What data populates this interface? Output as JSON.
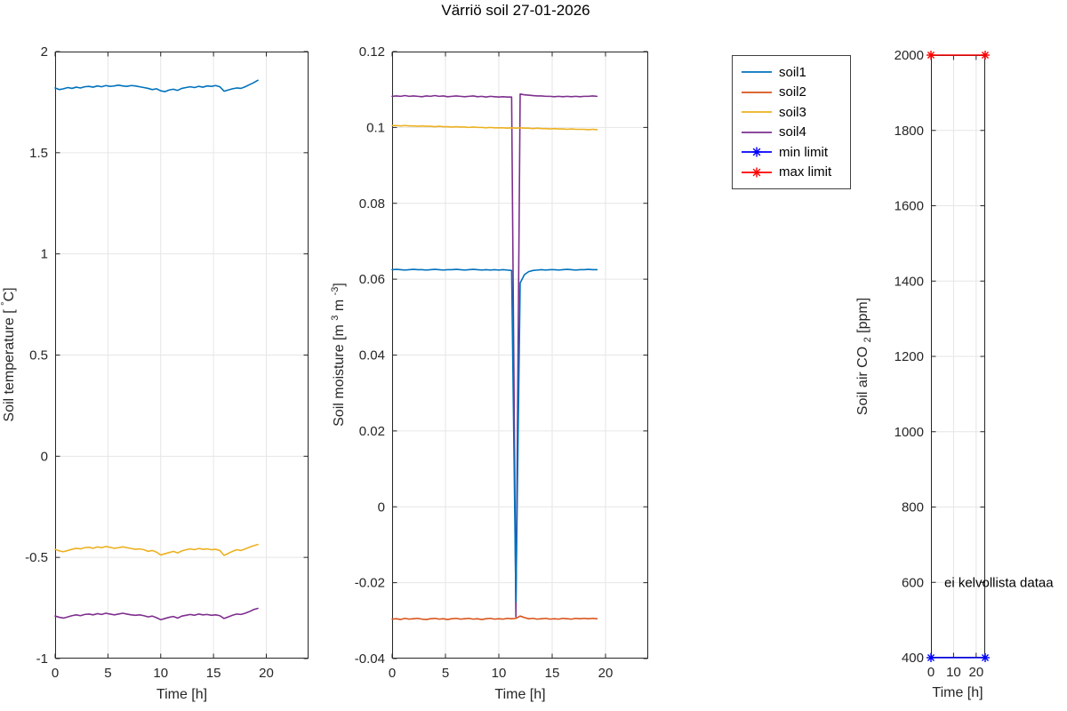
{
  "title": "Värriö soil 27-01-2026",
  "colors": {
    "soil1": "#0072BD",
    "soil2": "#D95319",
    "soil3": "#EDB120",
    "soil4": "#7E2F8E",
    "min_limit": "#0000FF",
    "max_limit": "#FF0000",
    "grid": "#E6E6E6",
    "axis": "#262626"
  },
  "legend": {
    "items": [
      {
        "label": "soil1",
        "color": "#0072BD",
        "marker": null
      },
      {
        "label": "soil2",
        "color": "#D95319",
        "marker": null
      },
      {
        "label": "soil3",
        "color": "#EDB120",
        "marker": null
      },
      {
        "label": "soil4",
        "color": "#7E2F8E",
        "marker": null
      },
      {
        "label": "min limit",
        "color": "#0000FF",
        "marker": "asterisk"
      },
      {
        "label": "max limit",
        "color": "#FF0000",
        "marker": "asterisk"
      }
    ]
  },
  "chart_data": [
    {
      "id": "temp",
      "type": "line",
      "xlabel": "Time [h]",
      "ylabel": "Soil temperature [°C]",
      "ylabel_parts": [
        {
          "t": "Soil temperature [ "
        },
        {
          "t": "°",
          "sup": true
        },
        {
          "t": "C]"
        }
      ],
      "xlim": [
        0,
        24
      ],
      "ylim": [
        -1,
        2
      ],
      "grid": true,
      "xticks": {
        "values": [
          0,
          5,
          10,
          15,
          20
        ],
        "labels": [
          "0",
          "5",
          "10",
          "15",
          "20"
        ]
      },
      "yticks": {
        "values": [
          -1,
          -0.5,
          0,
          0.5,
          1,
          1.5,
          2
        ],
        "labels": [
          "-1",
          "-0.5",
          "0",
          "0.5",
          "1",
          "1.5",
          "2"
        ]
      },
      "x": [
        0,
        0.4,
        0.8,
        1.2,
        1.6,
        2,
        2.4,
        2.8,
        3.2,
        3.6,
        4,
        4.4,
        4.8,
        5.2,
        5.6,
        6,
        6.4,
        6.8,
        7.2,
        7.6,
        8,
        8.4,
        8.8,
        9.2,
        9.6,
        10,
        10.4,
        10.8,
        11.2,
        11.6,
        12,
        12.4,
        12.8,
        13.2,
        13.6,
        14,
        14.4,
        14.8,
        15.2,
        15.6,
        16,
        16.4,
        16.8,
        17.2,
        17.6,
        18,
        18.4,
        18.8,
        19.2
      ],
      "series": [
        {
          "name": "soil1",
          "color": "#0072BD",
          "values": [
            1.82,
            1.812,
            1.816,
            1.822,
            1.818,
            1.824,
            1.82,
            1.826,
            1.828,
            1.824,
            1.83,
            1.826,
            1.832,
            1.828,
            1.83,
            1.834,
            1.83,
            1.828,
            1.832,
            1.83,
            1.826,
            1.822,
            1.818,
            1.812,
            1.816,
            1.806,
            1.802,
            1.81,
            1.814,
            1.808,
            1.818,
            1.822,
            1.826,
            1.822,
            1.828,
            1.824,
            1.83,
            1.828,
            1.832,
            1.826,
            1.804,
            1.81,
            1.816,
            1.82,
            1.818,
            1.826,
            1.836,
            1.846,
            1.858
          ]
        },
        {
          "name": "soil3",
          "color": "#EDB120",
          "values": [
            -0.46,
            -0.468,
            -0.472,
            -0.466,
            -0.46,
            -0.455,
            -0.458,
            -0.452,
            -0.45,
            -0.455,
            -0.448,
            -0.452,
            -0.446,
            -0.45,
            -0.455,
            -0.452,
            -0.448,
            -0.452,
            -0.456,
            -0.46,
            -0.458,
            -0.462,
            -0.47,
            -0.466,
            -0.474,
            -0.488,
            -0.482,
            -0.476,
            -0.47,
            -0.478,
            -0.468,
            -0.462,
            -0.458,
            -0.462,
            -0.456,
            -0.46,
            -0.458,
            -0.462,
            -0.46,
            -0.466,
            -0.49,
            -0.48,
            -0.47,
            -0.462,
            -0.466,
            -0.458,
            -0.45,
            -0.442,
            -0.436
          ]
        },
        {
          "name": "soil4",
          "color": "#7E2F8E",
          "values": [
            -0.79,
            -0.796,
            -0.8,
            -0.794,
            -0.788,
            -0.784,
            -0.788,
            -0.782,
            -0.78,
            -0.784,
            -0.778,
            -0.782,
            -0.776,
            -0.78,
            -0.784,
            -0.78,
            -0.776,
            -0.78,
            -0.784,
            -0.786,
            -0.784,
            -0.788,
            -0.794,
            -0.79,
            -0.798,
            -0.808,
            -0.802,
            -0.796,
            -0.792,
            -0.8,
            -0.79,
            -0.786,
            -0.782,
            -0.786,
            -0.78,
            -0.784,
            -0.782,
            -0.786,
            -0.784,
            -0.788,
            -0.802,
            -0.794,
            -0.786,
            -0.78,
            -0.782,
            -0.776,
            -0.768,
            -0.758,
            -0.752
          ]
        }
      ]
    },
    {
      "id": "moisture",
      "type": "line",
      "xlabel": "Time [h]",
      "ylabel": "Soil moisture [m3 m-3]",
      "ylabel_parts": [
        {
          "t": "Soil moisture [m "
        },
        {
          "t": "3",
          "sup": true
        },
        {
          "t": " m "
        },
        {
          "t": "-3",
          "sup": true
        },
        {
          "t": "]"
        }
      ],
      "xlim": [
        0,
        24
      ],
      "ylim": [
        -0.04,
        0.12
      ],
      "grid": true,
      "xticks": {
        "values": [
          0,
          5,
          10,
          15,
          20
        ],
        "labels": [
          "0",
          "5",
          "10",
          "15",
          "20"
        ]
      },
      "yticks": {
        "values": [
          -0.04,
          -0.02,
          0,
          0.02,
          0.04,
          0.06,
          0.08,
          0.1,
          0.12
        ],
        "labels": [
          "-0.04",
          "-0.02",
          "0",
          "0.02",
          "0.04",
          "0.06",
          "0.08",
          "0.1",
          "0.12"
        ]
      },
      "x": [
        0,
        0.4,
        0.8,
        1.2,
        1.6,
        2,
        2.4,
        2.8,
        3.2,
        3.6,
        4,
        4.4,
        4.8,
        5.2,
        5.6,
        6,
        6.4,
        6.8,
        7.2,
        7.6,
        8,
        8.4,
        8.8,
        9.2,
        9.6,
        10,
        10.4,
        10.8,
        11.2,
        11.6,
        12,
        12.4,
        12.8,
        13.2,
        13.6,
        14,
        14.4,
        14.8,
        15.2,
        15.6,
        16,
        16.4,
        16.8,
        17.2,
        17.6,
        18,
        18.4,
        18.8,
        19.2
      ],
      "series": [
        {
          "name": "soil4",
          "color": "#7E2F8E",
          "values": [
            0.1082,
            0.1083,
            0.1082,
            0.1084,
            0.1082,
            0.1083,
            0.1082,
            0.1081,
            0.1083,
            0.1082,
            0.1084,
            0.1082,
            0.1083,
            0.1081,
            0.1082,
            0.1083,
            0.1082,
            0.1081,
            0.1082,
            0.1083,
            0.1081,
            0.1082,
            0.108,
            0.1082,
            0.1081,
            0.108,
            0.1081,
            0.108,
            0.108,
            -0.029,
            0.1088,
            0.1086,
            0.1085,
            0.1084,
            0.1083,
            0.1083,
            0.1082,
            0.1082,
            0.1081,
            0.1082,
            0.1081,
            0.1082,
            0.1081,
            0.1082,
            0.1081,
            0.1082,
            0.1082,
            0.1083,
            0.1082
          ]
        },
        {
          "name": "soil3",
          "color": "#EDB120",
          "values": [
            0.1005,
            0.1005,
            0.1004,
            0.1005,
            0.1004,
            0.1004,
            0.1003,
            0.1004,
            0.1003,
            0.1003,
            0.1002,
            0.1003,
            0.1002,
            0.1002,
            0.1001,
            0.1002,
            0.1001,
            0.1001,
            0.1,
            0.1001,
            0.1,
            0.1,
            0.0999,
            0.1,
            0.0999,
            0.0999,
            0.0999,
            0.0998,
            0.0999,
            0.0998,
            0.0999,
            0.0998,
            0.0998,
            0.0997,
            0.0998,
            0.0997,
            0.0997,
            0.0996,
            0.0997,
            0.0996,
            0.0996,
            0.0995,
            0.0996,
            0.0995,
            0.0995,
            0.0995,
            0.0994,
            0.0995,
            0.0994
          ]
        },
        {
          "name": "soil1",
          "color": "#0072BD",
          "values": [
            0.0625,
            0.0626,
            0.0625,
            0.0624,
            0.0625,
            0.0626,
            0.0625,
            0.0625,
            0.0624,
            0.0625,
            0.0626,
            0.0625,
            0.0624,
            0.0625,
            0.0625,
            0.0626,
            0.0625,
            0.0624,
            0.0625,
            0.0626,
            0.0625,
            0.0624,
            0.0625,
            0.0624,
            0.0625,
            0.0624,
            0.0625,
            0.0624,
            0.0623,
            -0.025,
            0.059,
            0.0612,
            0.062,
            0.0623,
            0.0624,
            0.0625,
            0.0624,
            0.0625,
            0.0625,
            0.0624,
            0.0625,
            0.0626,
            0.0625,
            0.0624,
            0.0625,
            0.0625,
            0.0626,
            0.0625,
            0.0625
          ]
        },
        {
          "name": "soil2",
          "color": "#D95319",
          "values": [
            -0.0296,
            -0.0295,
            -0.0297,
            -0.0294,
            -0.0296,
            -0.0295,
            -0.0294,
            -0.0296,
            -0.0297,
            -0.0295,
            -0.0294,
            -0.0296,
            -0.0295,
            -0.0297,
            -0.0295,
            -0.0294,
            -0.0296,
            -0.0295,
            -0.0294,
            -0.0296,
            -0.0295,
            -0.0297,
            -0.0295,
            -0.0294,
            -0.0296,
            -0.0295,
            -0.0296,
            -0.0294,
            -0.0295,
            -0.0294,
            -0.0288,
            -0.0292,
            -0.0295,
            -0.0294,
            -0.0296,
            -0.0295,
            -0.0294,
            -0.0296,
            -0.0295,
            -0.0296,
            -0.0294,
            -0.0295,
            -0.0296,
            -0.0294,
            -0.0295,
            -0.0294,
            -0.0295,
            -0.0294,
            -0.0295
          ]
        }
      ]
    },
    {
      "id": "co2",
      "type": "line",
      "xlabel": "Time [h]",
      "ylabel": "Soil air CO2 [ppm]",
      "ylabel_parts": [
        {
          "t": "Soil air CO "
        },
        {
          "t": "2",
          "sub": true
        },
        {
          "t": " [ppm]"
        }
      ],
      "xlim": [
        0,
        24
      ],
      "ylim": [
        400,
        2000
      ],
      "grid": true,
      "xticks": {
        "values": [
          0,
          10,
          20
        ],
        "labels": [
          "0",
          "10",
          "20"
        ]
      },
      "yticks": {
        "values": [
          400,
          600,
          800,
          1000,
          1200,
          1400,
          1600,
          1800,
          2000
        ],
        "labels": [
          "400",
          "600",
          "800",
          "1000",
          "1200",
          "1400",
          "1600",
          "1800",
          "2000"
        ]
      },
      "series": [
        {
          "name": "max limit",
          "color": "#FF0000",
          "marker": "asterisk",
          "x": [
            0,
            24
          ],
          "values": [
            2000,
            2000
          ]
        },
        {
          "name": "min limit",
          "color": "#0000FF",
          "marker": "asterisk",
          "x": [
            0,
            24
          ],
          "values": [
            400,
            400
          ]
        }
      ],
      "annotation": {
        "text": "ei kelvollista dataa",
        "x": 5.9,
        "y": 600
      }
    }
  ]
}
